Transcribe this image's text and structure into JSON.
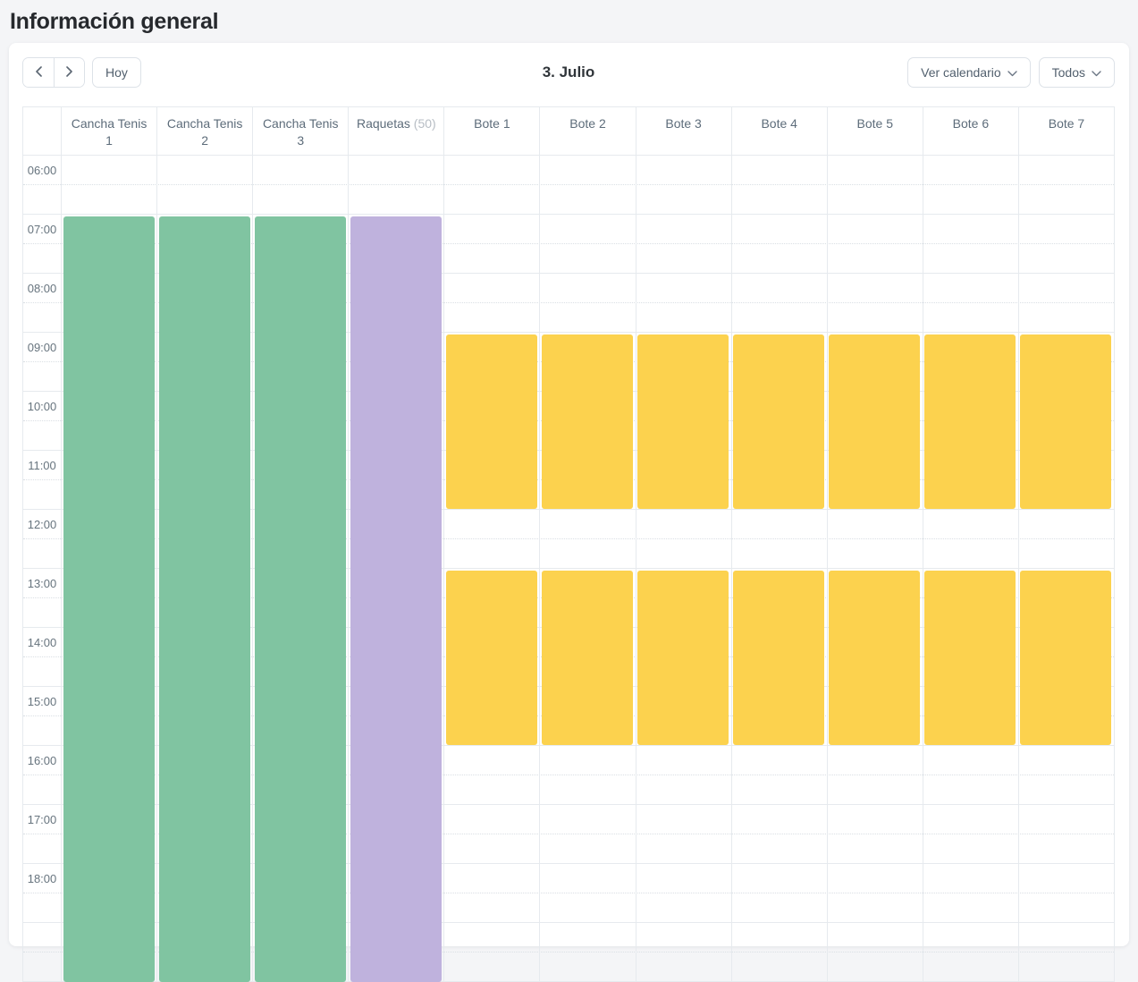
{
  "page": {
    "title": "Información general"
  },
  "toolbar": {
    "prev_icon": "chevron-left",
    "next_icon": "chevron-right",
    "today_label": "Hoy",
    "date_title": "3. Julio",
    "view_dropdown_label": "Ver calendario",
    "filter_dropdown_label": "Todos"
  },
  "calendar": {
    "view_start": "06:00",
    "slot_minutes": 30,
    "time_labels": [
      "06:00",
      "07:00",
      "08:00",
      "09:00",
      "10:00",
      "11:00",
      "12:00",
      "13:00",
      "14:00",
      "15:00",
      "16:00",
      "17:00",
      "18:00"
    ],
    "resources": [
      {
        "name": "Cancha Tenis 1",
        "line1": "Cancha Tenis",
        "line2": "1",
        "suffix": ""
      },
      {
        "name": "Cancha Tenis 2",
        "line1": "Cancha Tenis",
        "line2": "2",
        "suffix": ""
      },
      {
        "name": "Cancha Tenis 3",
        "line1": "Cancha Tenis",
        "line2": "3",
        "suffix": ""
      },
      {
        "name": "Raquetas",
        "line1": "Raquetas",
        "line2": "",
        "suffix": "(50)"
      },
      {
        "name": "Bote 1",
        "line1": "Bote 1",
        "line2": "",
        "suffix": ""
      },
      {
        "name": "Bote 2",
        "line1": "Bote 2",
        "line2": "",
        "suffix": ""
      },
      {
        "name": "Bote 3",
        "line1": "Bote 3",
        "line2": "",
        "suffix": ""
      },
      {
        "name": "Bote 4",
        "line1": "Bote 4",
        "line2": "",
        "suffix": ""
      },
      {
        "name": "Bote 5",
        "line1": "Bote 5",
        "line2": "",
        "suffix": ""
      },
      {
        "name": "Bote 6",
        "line1": "Bote 6",
        "line2": "",
        "suffix": ""
      },
      {
        "name": "Bote 7",
        "line1": "Bote 7",
        "line2": "",
        "suffix": ""
      }
    ],
    "colors": {
      "green": "#80c4a1",
      "purple": "#bfb2dd",
      "yellow": "#fcd24e"
    },
    "events": [
      {
        "resource": 0,
        "start": "07:00",
        "end": null,
        "ends_beyond_view": true,
        "color": "green"
      },
      {
        "resource": 1,
        "start": "07:00",
        "end": null,
        "ends_beyond_view": true,
        "color": "green"
      },
      {
        "resource": 2,
        "start": "07:00",
        "end": null,
        "ends_beyond_view": true,
        "color": "green"
      },
      {
        "resource": 3,
        "start": "07:00",
        "end": null,
        "ends_beyond_view": true,
        "color": "purple"
      },
      {
        "resource": 4,
        "start": "09:00",
        "end": "12:00",
        "color": "yellow"
      },
      {
        "resource": 5,
        "start": "09:00",
        "end": "12:00",
        "color": "yellow"
      },
      {
        "resource": 6,
        "start": "09:00",
        "end": "12:00",
        "color": "yellow"
      },
      {
        "resource": 7,
        "start": "09:00",
        "end": "12:00",
        "color": "yellow"
      },
      {
        "resource": 8,
        "start": "09:00",
        "end": "12:00",
        "color": "yellow"
      },
      {
        "resource": 9,
        "start": "09:00",
        "end": "12:00",
        "color": "yellow"
      },
      {
        "resource": 10,
        "start": "09:00",
        "end": "12:00",
        "color": "yellow"
      },
      {
        "resource": 4,
        "start": "13:00",
        "end": "16:00",
        "color": "yellow"
      },
      {
        "resource": 5,
        "start": "13:00",
        "end": "16:00",
        "color": "yellow"
      },
      {
        "resource": 6,
        "start": "13:00",
        "end": "16:00",
        "color": "yellow"
      },
      {
        "resource": 7,
        "start": "13:00",
        "end": "16:00",
        "color": "yellow"
      },
      {
        "resource": 8,
        "start": "13:00",
        "end": "16:00",
        "color": "yellow"
      },
      {
        "resource": 9,
        "start": "13:00",
        "end": "16:00",
        "color": "yellow"
      },
      {
        "resource": 10,
        "start": "13:00",
        "end": "16:00",
        "color": "yellow"
      }
    ]
  }
}
